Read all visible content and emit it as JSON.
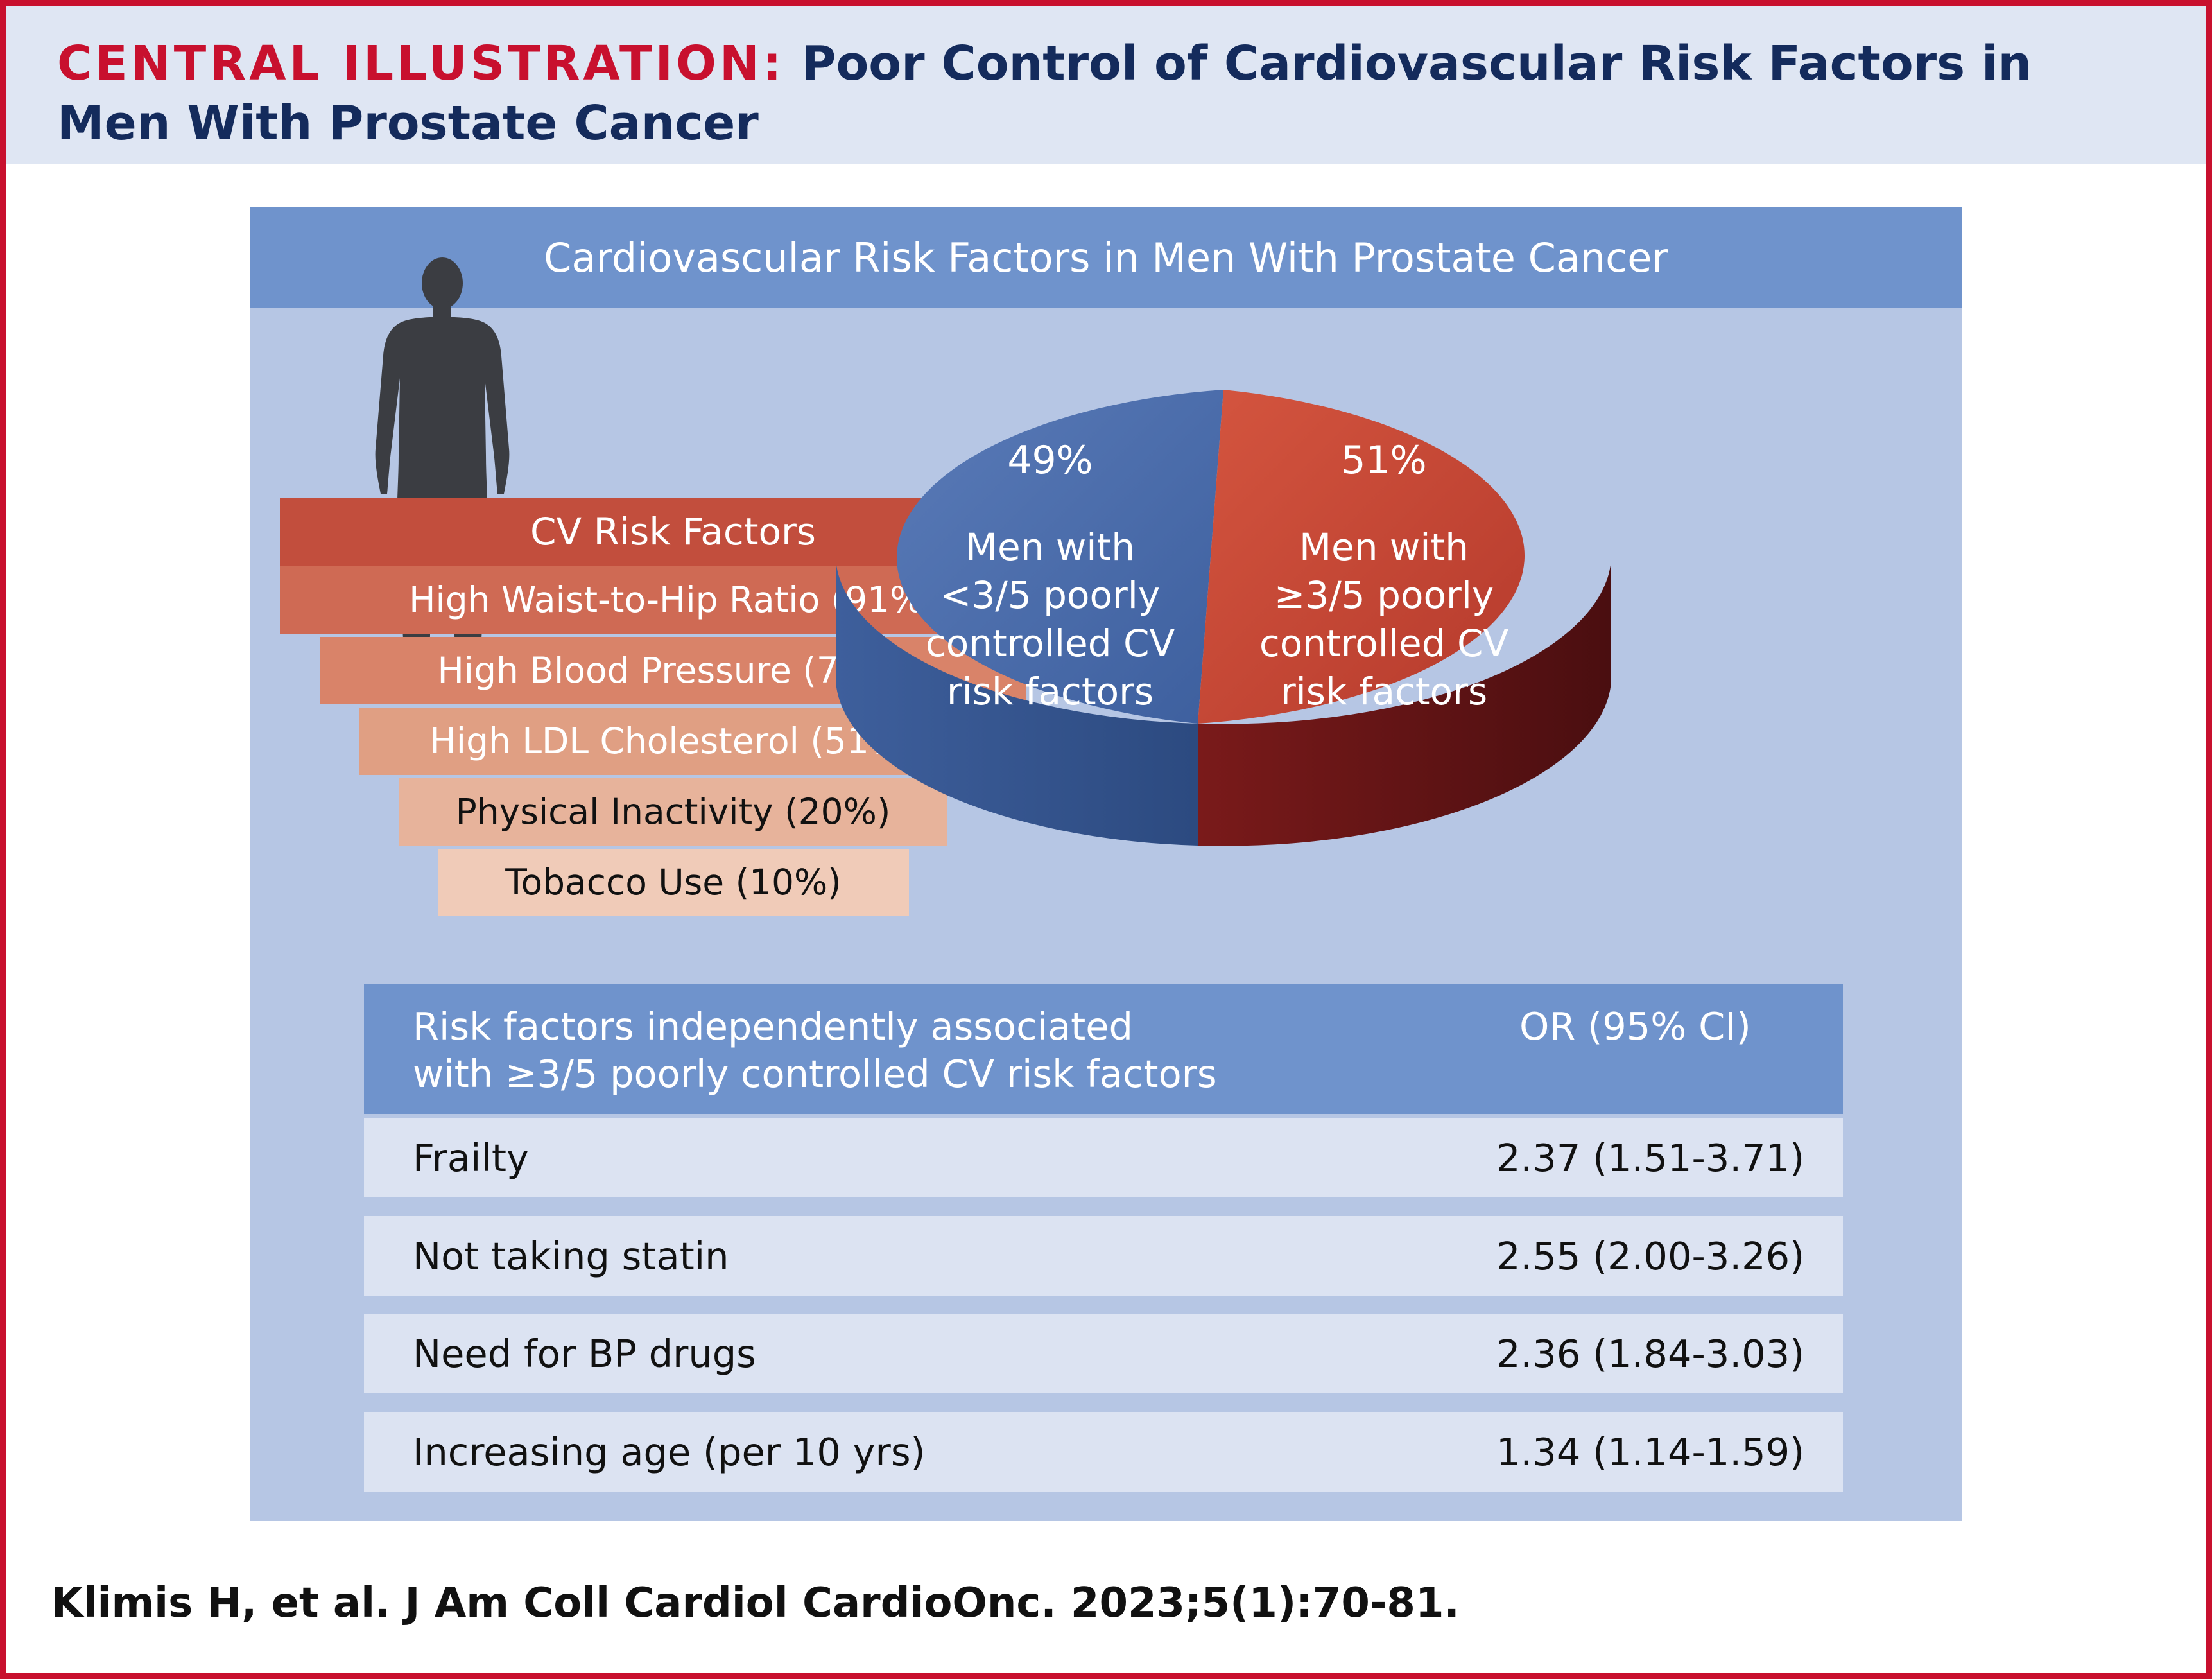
{
  "header": {
    "label": "CENTRAL ILLUSTRATION:",
    "title_part1": "Poor Control of Cardiovascular Risk Factors in",
    "title_part2": "Men With Prostate Cancer"
  },
  "panel": {
    "title": "Cardiovascular Risk Factors in Men With Prostate Cancer"
  },
  "funnel": {
    "heading": "CV Risk Factors",
    "items": [
      {
        "label": "High Waist-to-Hip Ratio (91%)",
        "percent": 91
      },
      {
        "label": "High Blood Pressure (75%)",
        "percent": 75
      },
      {
        "label": "High LDL Cholesterol (51%)",
        "percent": 51
      },
      {
        "label": "Physical Inactivity (20%)",
        "percent": 20
      },
      {
        "label": "Tobacco Use (10%)",
        "percent": 10
      }
    ]
  },
  "pie": {
    "slices": [
      {
        "percent_label": "49%",
        "value": 49,
        "label_lines": [
          "Men with",
          "<3/5 poorly",
          "controlled CV",
          "risk factors"
        ],
        "color": "#4a6aa6"
      },
      {
        "percent_label": "51%",
        "value": 51,
        "label_lines": [
          "Men with",
          "≥3/5 poorly",
          "controlled CV",
          "risk factors"
        ],
        "color": "#c44736"
      }
    ]
  },
  "table": {
    "header_col1_lines": [
      "Risk factors independently associated",
      "with ≥3/5 poorly controlled CV risk factors"
    ],
    "header_col2": "OR (95% CI)",
    "rows": [
      {
        "factor": "Frailty",
        "or": "2.37 (1.51-3.71)"
      },
      {
        "factor": "Not taking statin",
        "or": "2.55 (2.00-3.26)"
      },
      {
        "factor": "Need for BP drugs",
        "or": "2.36 (1.84-3.03)"
      },
      {
        "factor": "Increasing age (per 10 yrs)",
        "or": "1.34 (1.14-1.59)"
      }
    ]
  },
  "citation": "Klimis H, et al. J Am Coll Cardiol CardioOnc. 2023;5(1):70-81.",
  "colors": {
    "brand_red": "#c8102e",
    "navy": "#142b5c",
    "panel_bg": "#b6c6e4",
    "panel_header": "#6f93cc"
  }
}
